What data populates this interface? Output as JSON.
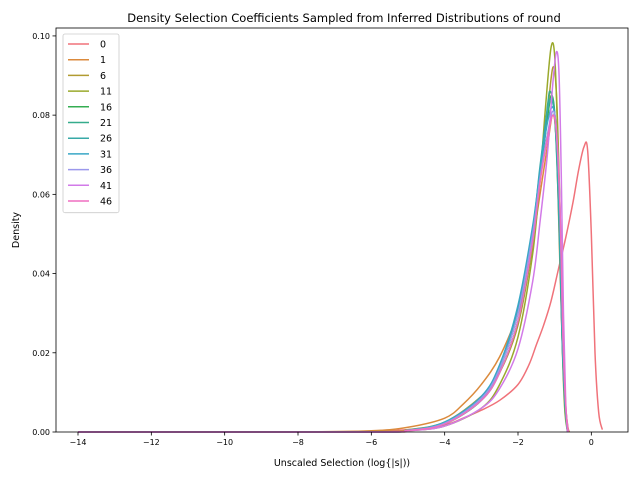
{
  "chart_data": {
    "type": "line",
    "title": "Density Selection Coefficients Sampled from Inferred Distributions of round",
    "xlabel": "Unscaled Selection (log{|s|))",
    "ylabel": "Density",
    "xlim": [
      -14.6,
      1.0
    ],
    "ylim": [
      0,
      0.102
    ],
    "xticks": [
      -14,
      -12,
      -10,
      -8,
      -6,
      -4,
      -2,
      0
    ],
    "yticks": [
      0.0,
      0.02,
      0.04,
      0.06,
      0.08,
      0.1
    ],
    "xtick_labels": [
      "−14",
      "−12",
      "−10",
      "−8",
      "−6",
      "−4",
      "−2",
      "0"
    ],
    "ytick_labels": [
      "0.00",
      "0.02",
      "0.04",
      "0.06",
      "0.08",
      "0.10"
    ],
    "legend_position": "top-left",
    "grid": false,
    "series": [
      {
        "name": "0",
        "color": "#f0727a",
        "x": [
          -14.0,
          -8.0,
          -6.0,
          -5.0,
          -4.0,
          -3.5,
          -3.0,
          -2.5,
          -2.0,
          -1.7,
          -1.5,
          -1.3,
          -1.1,
          -0.9,
          -0.7,
          -0.5,
          -0.35,
          -0.2,
          -0.1,
          0.0,
          0.1,
          0.2,
          0.3
        ],
        "y": [
          0.0,
          0.0,
          0.0002,
          0.0006,
          0.0018,
          0.0035,
          0.0055,
          0.008,
          0.012,
          0.017,
          0.022,
          0.027,
          0.033,
          0.041,
          0.049,
          0.058,
          0.066,
          0.072,
          0.071,
          0.05,
          0.02,
          0.005,
          0.0006
        ]
      },
      {
        "name": "1",
        "color": "#db8a3c",
        "x": [
          -14.0,
          -8.0,
          -6.0,
          -5.0,
          -4.0,
          -3.5,
          -3.0,
          -2.5,
          -2.0,
          -1.8,
          -1.6,
          -1.4,
          -1.2,
          -1.05,
          -0.95,
          -0.85,
          -0.75,
          -0.65,
          -0.6
        ],
        "y": [
          0.0,
          0.0,
          0.0003,
          0.0012,
          0.0035,
          0.007,
          0.012,
          0.019,
          0.03,
          0.038,
          0.048,
          0.06,
          0.072,
          0.08,
          0.072,
          0.04,
          0.012,
          0.002,
          0.0
        ]
      },
      {
        "name": "6",
        "color": "#b19b31",
        "x": [
          -14.0,
          -6.0,
          -5.0,
          -4.0,
          -3.0,
          -2.5,
          -2.0,
          -1.6,
          -1.4,
          -1.2,
          -1.05,
          -0.95,
          -0.85,
          -0.75,
          -0.7,
          -0.65
        ],
        "y": [
          0.0,
          0.0001,
          0.0006,
          0.0025,
          0.009,
          0.015,
          0.027,
          0.047,
          0.063,
          0.08,
          0.092,
          0.085,
          0.055,
          0.018,
          0.006,
          0.0
        ]
      },
      {
        "name": "11",
        "color": "#9aa92c",
        "x": [
          -14.0,
          -6.0,
          -5.0,
          -4.0,
          -3.0,
          -2.5,
          -2.0,
          -1.6,
          -1.4,
          -1.25,
          -1.1,
          -1.0,
          -0.92,
          -0.85,
          -0.78,
          -0.72,
          -0.65
        ],
        "y": [
          0.0,
          0.0,
          0.0003,
          0.0015,
          0.006,
          0.012,
          0.024,
          0.045,
          0.064,
          0.082,
          0.097,
          0.095,
          0.075,
          0.045,
          0.018,
          0.005,
          0.0
        ]
      },
      {
        "name": "16",
        "color": "#34ad52",
        "x": [
          -14.0,
          -6.0,
          -5.0,
          -4.0,
          -3.0,
          -2.5,
          -2.0,
          -1.6,
          -1.4,
          -1.2,
          -1.08,
          -0.98,
          -0.88,
          -0.8,
          -0.72,
          -0.65
        ],
        "y": [
          0.0,
          0.0,
          0.0004,
          0.002,
          0.008,
          0.015,
          0.028,
          0.048,
          0.064,
          0.079,
          0.085,
          0.078,
          0.055,
          0.025,
          0.007,
          0.0
        ]
      },
      {
        "name": "21",
        "color": "#35ac8c",
        "x": [
          -14.0,
          -6.0,
          -5.0,
          -4.0,
          -3.0,
          -2.5,
          -2.0,
          -1.6,
          -1.4,
          -1.2,
          -1.12,
          -1.0,
          -0.9,
          -0.8,
          -0.72,
          -0.65
        ],
        "y": [
          0.0,
          0.0,
          0.0004,
          0.002,
          0.008,
          0.016,
          0.03,
          0.05,
          0.066,
          0.082,
          0.086,
          0.08,
          0.058,
          0.026,
          0.008,
          0.0
        ]
      },
      {
        "name": "26",
        "color": "#37a9a7",
        "x": [
          -14.0,
          -6.0,
          -5.0,
          -4.0,
          -3.0,
          -2.5,
          -2.0,
          -1.6,
          -1.4,
          -1.2,
          -1.08,
          -0.98,
          -0.88,
          -0.8,
          -0.72,
          -0.65
        ],
        "y": [
          0.0,
          0.0,
          0.0004,
          0.0022,
          0.0085,
          0.016,
          0.031,
          0.051,
          0.067,
          0.081,
          0.084,
          0.077,
          0.054,
          0.024,
          0.007,
          0.0
        ]
      },
      {
        "name": "31",
        "color": "#39a7c6",
        "x": [
          -14.0,
          -6.0,
          -5.0,
          -4.0,
          -3.0,
          -2.5,
          -2.0,
          -1.6,
          -1.4,
          -1.2,
          -1.05,
          -0.95,
          -0.85,
          -0.78,
          -0.7,
          -0.63
        ],
        "y": [
          0.0,
          0.0,
          0.0005,
          0.0025,
          0.009,
          0.017,
          0.032,
          0.052,
          0.066,
          0.078,
          0.082,
          0.075,
          0.052,
          0.024,
          0.006,
          0.0
        ]
      },
      {
        "name": "36",
        "color": "#9b98ec",
        "x": [
          -14.0,
          -6.0,
          -5.0,
          -4.0,
          -3.0,
          -2.5,
          -2.0,
          -1.6,
          -1.4,
          -1.2,
          -1.05,
          -0.95,
          -0.85,
          -0.78,
          -0.7,
          -0.63
        ],
        "y": [
          0.0,
          0.0,
          0.0004,
          0.0022,
          0.0085,
          0.016,
          0.03,
          0.05,
          0.064,
          0.075,
          0.081,
          0.076,
          0.055,
          0.026,
          0.007,
          0.0
        ]
      },
      {
        "name": "41",
        "color": "#d27ae8",
        "x": [
          -14.0,
          -6.0,
          -5.0,
          -4.0,
          -3.0,
          -2.5,
          -2.0,
          -1.6,
          -1.4,
          -1.2,
          -1.05,
          -0.95,
          -0.88,
          -0.82,
          -0.76,
          -0.7,
          -0.65
        ],
        "y": [
          0.0,
          0.0,
          0.0003,
          0.0015,
          0.006,
          0.011,
          0.021,
          0.038,
          0.053,
          0.07,
          0.088,
          0.096,
          0.09,
          0.065,
          0.03,
          0.008,
          0.0
        ]
      },
      {
        "name": "46",
        "color": "#ef6fc0",
        "x": [
          -14.0,
          -6.0,
          -5.0,
          -4.0,
          -3.0,
          -2.5,
          -2.0,
          -1.6,
          -1.4,
          -1.2,
          -1.05,
          -0.95,
          -0.85,
          -0.78,
          -0.7,
          -0.63
        ],
        "y": [
          0.0,
          0.0,
          0.0004,
          0.002,
          0.008,
          0.015,
          0.028,
          0.048,
          0.063,
          0.074,
          0.08,
          0.075,
          0.055,
          0.026,
          0.007,
          0.0
        ]
      }
    ]
  }
}
